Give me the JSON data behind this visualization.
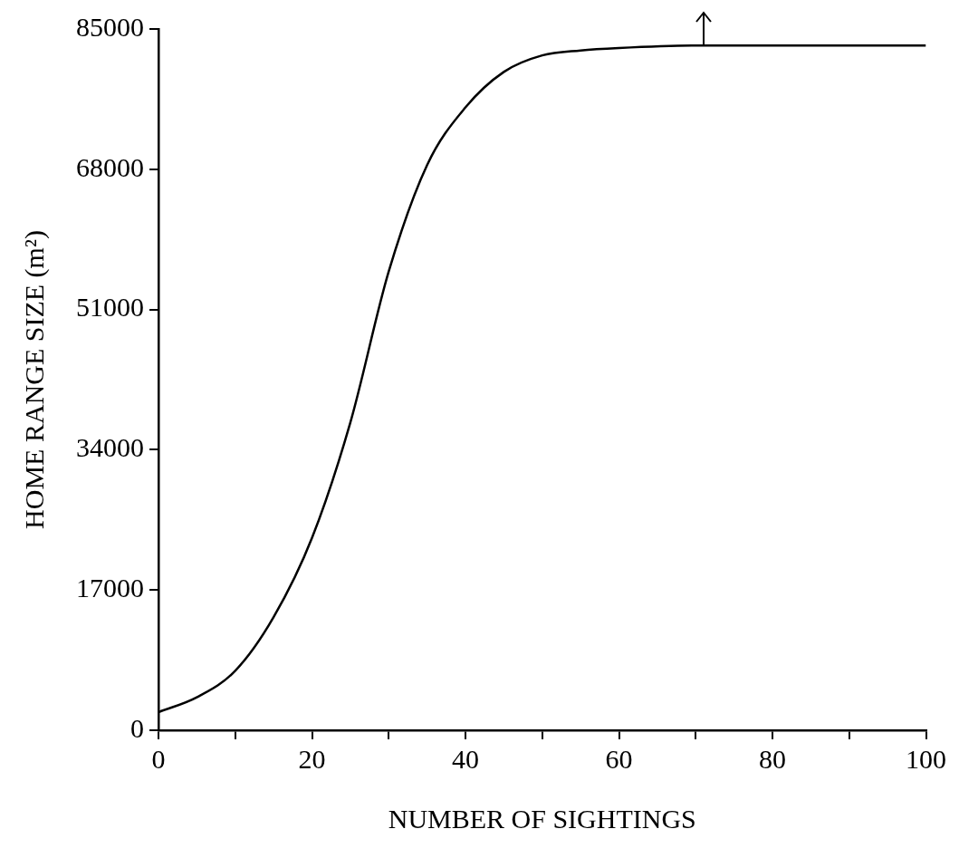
{
  "chart_data": {
    "type": "line",
    "xlabel": "NUMBER OF SIGHTINGS",
    "ylabel": "HOME RANGE SIZE (m²)",
    "x": [
      0,
      5,
      10,
      15,
      20,
      25,
      30,
      35,
      40,
      45,
      50,
      55,
      60,
      70,
      80,
      90,
      100
    ],
    "series": [
      {
        "color": "#000000",
        "values": [
          2200,
          4000,
          7200,
          13700,
          23300,
          37300,
          55600,
          68500,
          75500,
          79800,
          81800,
          82400,
          82700,
          83000,
          83000,
          83000,
          83000
        ]
      }
    ],
    "xlim": [
      0,
      100
    ],
    "xticks": [
      0,
      {
        "value": 10,
        "label": null
      },
      20,
      {
        "value": 30,
        "label": null
      },
      40,
      {
        "value": 50,
        "label": null
      },
      60,
      {
        "value": 70,
        "label": null
      },
      80,
      {
        "value": 90,
        "label": null
      },
      100
    ],
    "ylim": [
      0,
      85000
    ],
    "yticks": [
      0,
      17000,
      34000,
      51000,
      68000,
      85000
    ],
    "grid": false,
    "legend": false,
    "marker": "none",
    "line_style": "solid"
  }
}
